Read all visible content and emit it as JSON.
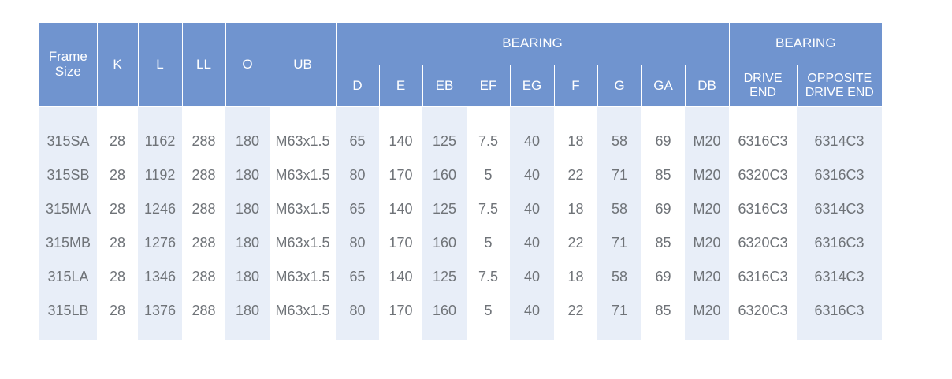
{
  "header": {
    "frame_size": "Frame Size",
    "k": "K",
    "l": "L",
    "ll": "LL",
    "o": "O",
    "ub": "UB",
    "bearing_group_1": "BEARING",
    "bearing_group_2": "BEARING",
    "d": "D",
    "e": "E",
    "eb": "EB",
    "ef": "EF",
    "eg": "EG",
    "f": "F",
    "g": "G",
    "ga": "GA",
    "db": "DB",
    "drive_end": "DRIVE END",
    "opposite_drive_end": "OPPOSITE DRIVE END"
  },
  "rows": [
    {
      "frame": "315SA",
      "k": "28",
      "l": "1162",
      "ll": "288",
      "o": "180",
      "ub": "M63x1.5",
      "d": "65",
      "e": "140",
      "eb": "125",
      "ef": "7.5",
      "eg": "40",
      "f": "18",
      "g": "58",
      "ga": "69",
      "db": "M20",
      "de": "6316C3",
      "ode": "6314C3"
    },
    {
      "frame": "315SB",
      "k": "28",
      "l": "1192",
      "ll": "288",
      "o": "180",
      "ub": "M63x1.5",
      "d": "80",
      "e": "170",
      "eb": "160",
      "ef": "5",
      "eg": "40",
      "f": "22",
      "g": "71",
      "ga": "85",
      "db": "M20",
      "de": "6320C3",
      "ode": "6316C3"
    },
    {
      "frame": "315MA",
      "k": "28",
      "l": "1246",
      "ll": "288",
      "o": "180",
      "ub": "M63x1.5",
      "d": "65",
      "e": "140",
      "eb": "125",
      "ef": "7.5",
      "eg": "40",
      "f": "18",
      "g": "58",
      "ga": "69",
      "db": "M20",
      "de": "6316C3",
      "ode": "6314C3"
    },
    {
      "frame": "315MB",
      "k": "28",
      "l": "1276",
      "ll": "288",
      "o": "180",
      "ub": "M63x1.5",
      "d": "80",
      "e": "170",
      "eb": "160",
      "ef": "5",
      "eg": "40",
      "f": "22",
      "g": "71",
      "ga": "85",
      "db": "M20",
      "de": "6320C3",
      "ode": "6316C3"
    },
    {
      "frame": "315LA",
      "k": "28",
      "l": "1346",
      "ll": "288",
      "o": "180",
      "ub": "M63x1.5",
      "d": "65",
      "e": "140",
      "eb": "125",
      "ef": "7.5",
      "eg": "40",
      "f": "18",
      "g": "58",
      "ga": "69",
      "db": "M20",
      "de": "6316C3",
      "ode": "6314C3"
    },
    {
      "frame": "315LB",
      "k": "28",
      "l": "1376",
      "ll": "288",
      "o": "180",
      "ub": "M63x1.5",
      "d": "80",
      "e": "170",
      "eb": "160",
      "ef": "5",
      "eg": "40",
      "f": "22",
      "g": "71",
      "ga": "85",
      "db": "M20",
      "de": "6320C3",
      "ode": "6316C3"
    }
  ],
  "colors": {
    "header_bg": "#7094cf",
    "alt_column_bg": "#e8eef8",
    "text": "#6f7378"
  }
}
